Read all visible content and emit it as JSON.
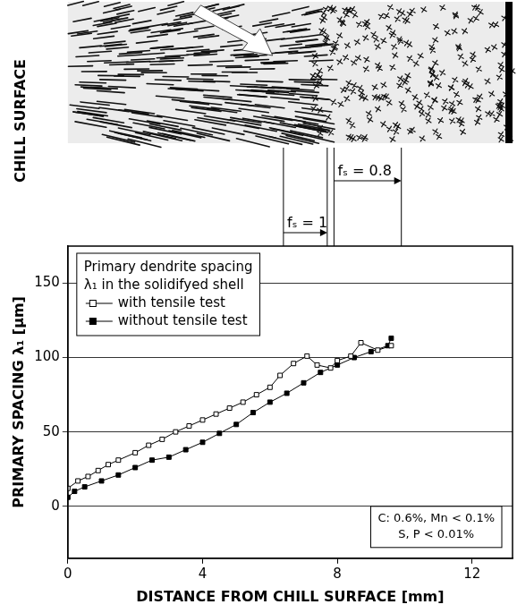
{
  "chart_data": {
    "type": "line",
    "x_label": "DISTANCE FROM CHILL SURFACE [mm]",
    "y_label": "PRIMARY SPACING λ₁ [µm]",
    "xlim": [
      0,
      13.2
    ],
    "xticks": [
      0,
      4,
      8,
      12
    ],
    "ylim": [
      -35,
      175
    ],
    "yticks": [
      0,
      50,
      100,
      150
    ],
    "grid": "y",
    "legend": "upper left",
    "legend_title": "Primary dendrite spacing λ₁ in the solidifyed shell",
    "series": [
      {
        "name": "with tensile test",
        "color": "#000000",
        "marker": "open_square",
        "line_style": "solid",
        "x": [
          0,
          0.3,
          0.6,
          0.9,
          1.2,
          1.5,
          2.0,
          2.4,
          2.8,
          3.2,
          3.6,
          4.0,
          4.4,
          4.8,
          5.2,
          5.6,
          6.0,
          6.3,
          6.7,
          7.1,
          7.4,
          7.8,
          8.0,
          8.4,
          8.7,
          9.2,
          9.6
        ],
        "values": [
          12,
          17,
          20,
          24,
          28,
          31,
          36,
          41,
          45,
          50,
          54,
          58,
          62,
          66,
          70,
          75,
          80,
          88,
          96,
          101,
          95,
          93,
          98,
          101,
          110,
          105,
          108
        ]
      },
      {
        "name": "without tensile test",
        "color": "#000000",
        "marker": "filled_square",
        "line_style": "solid",
        "x": [
          0,
          0.2,
          0.5,
          1.0,
          1.5,
          2.0,
          2.5,
          3.0,
          3.5,
          4.0,
          4.5,
          5.0,
          5.5,
          6.0,
          6.5,
          7.0,
          7.5,
          8.0,
          8.5,
          9.0,
          9.5,
          9.6
        ],
        "values": [
          6,
          10,
          13,
          17,
          21,
          26,
          31,
          33,
          38,
          43,
          49,
          55,
          63,
          70,
          76,
          83,
          90,
          95,
          100,
          104,
          108,
          113
        ]
      }
    ],
    "note": [
      "C: 0.6%, Mn < 0.1%",
      "S, P < 0.01%"
    ],
    "side_label": "CHILL SURFACE",
    "annotations": [
      {
        "text": "fₛ = 1",
        "x_from": 6.4,
        "x_to": 7.7
      },
      {
        "text": "fₛ = 0.8",
        "x_from": 7.9,
        "x_to": 9.9
      }
    ]
  }
}
